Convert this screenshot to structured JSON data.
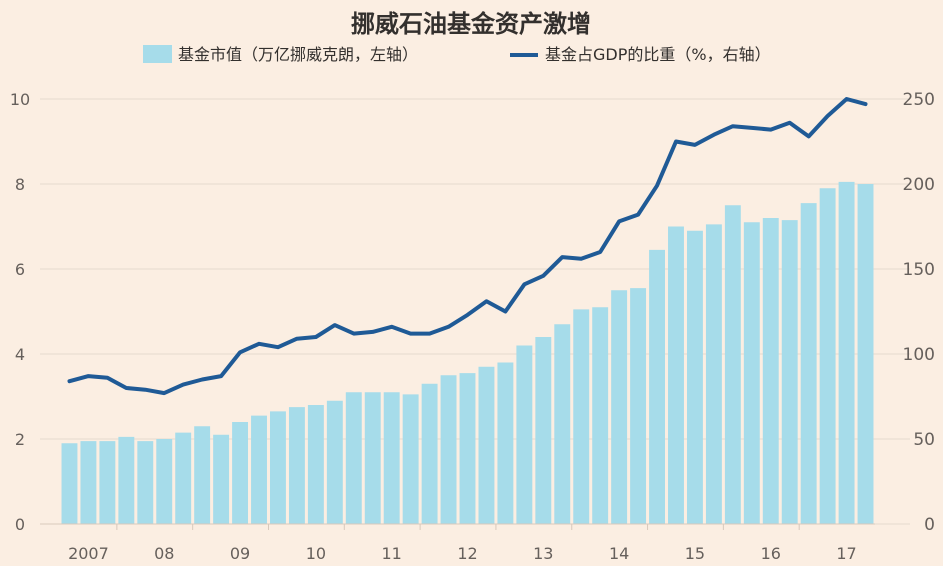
{
  "chart_data": {
    "type": "bar",
    "title": "挪威石油基金资产激增",
    "legend": {
      "bar_label": "基金市值（万亿挪威克朗，左轴）",
      "line_label": "基金占GDP的比重（%，右轴）"
    },
    "x_ticks": [
      "2007",
      "08",
      "09",
      "10",
      "11",
      "12",
      "13",
      "14",
      "15",
      "16",
      "17"
    ],
    "y_left": {
      "ticks": [
        "0",
        "2",
        "4",
        "6",
        "8",
        "10"
      ],
      "range": [
        0,
        10
      ]
    },
    "y_right": {
      "ticks": [
        "0",
        "50",
        "100",
        "150",
        "200",
        "250"
      ],
      "range": [
        0,
        250
      ]
    },
    "series": [
      {
        "name": "基金市值（万亿挪威克朗，左轴）",
        "type": "bar",
        "axis": "left",
        "values": [
          1.9,
          1.95,
          1.95,
          2.05,
          1.95,
          2.0,
          2.15,
          2.3,
          2.1,
          2.4,
          2.55,
          2.65,
          2.75,
          2.8,
          2.9,
          3.1,
          3.1,
          3.1,
          3.05,
          3.3,
          3.5,
          3.55,
          3.7,
          3.8,
          4.2,
          4.4,
          4.7,
          5.05,
          5.1,
          5.5,
          5.55,
          6.45,
          7.0,
          6.9,
          7.05,
          7.5,
          7.1,
          7.2,
          7.15,
          7.55,
          7.9,
          8.05,
          8.0
        ]
      },
      {
        "name": "基金占GDP的比重（%，右轴）",
        "type": "line",
        "axis": "right",
        "values": [
          84,
          87,
          86,
          80,
          79,
          77,
          82,
          85,
          87,
          101,
          106,
          104,
          109,
          110,
          117,
          112,
          113,
          116,
          112,
          112,
          116,
          123,
          131,
          125,
          141,
          146,
          157,
          156,
          160,
          178,
          182,
          199,
          225,
          223,
          229,
          234,
          233,
          232,
          236,
          228,
          240,
          250,
          247
        ]
      }
    ]
  }
}
